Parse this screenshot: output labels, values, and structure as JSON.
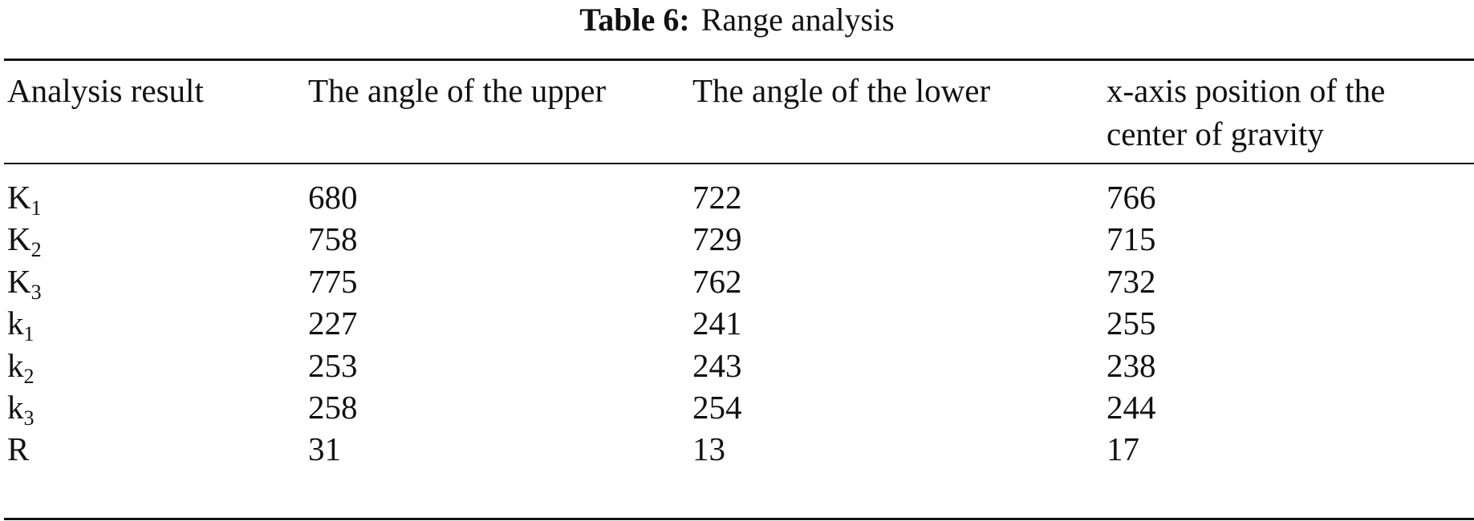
{
  "caption": {
    "label": "Table 6:",
    "text": "Range analysis"
  },
  "headers": [
    "Analysis result",
    "The angle of the upper",
    "The angle of the lower",
    "x-axis position of the",
    "center of gravity"
  ],
  "rows": [
    {
      "base": "K",
      "sub": "1",
      "values": [
        "680",
        "722",
        "766"
      ]
    },
    {
      "base": "K",
      "sub": "2",
      "values": [
        "758",
        "729",
        "715"
      ]
    },
    {
      "base": "K",
      "sub": "3",
      "values": [
        "775",
        "762",
        "732"
      ]
    },
    {
      "base": "k",
      "sub": "1",
      "values": [
        "227",
        "241",
        "255"
      ]
    },
    {
      "base": "k",
      "sub": "2",
      "values": [
        "253",
        "243",
        "238"
      ]
    },
    {
      "base": "k",
      "sub": "3",
      "values": [
        "258",
        "254",
        "244"
      ]
    },
    {
      "base": "R",
      "sub": "",
      "values": [
        "31",
        "13",
        "17"
      ]
    }
  ]
}
